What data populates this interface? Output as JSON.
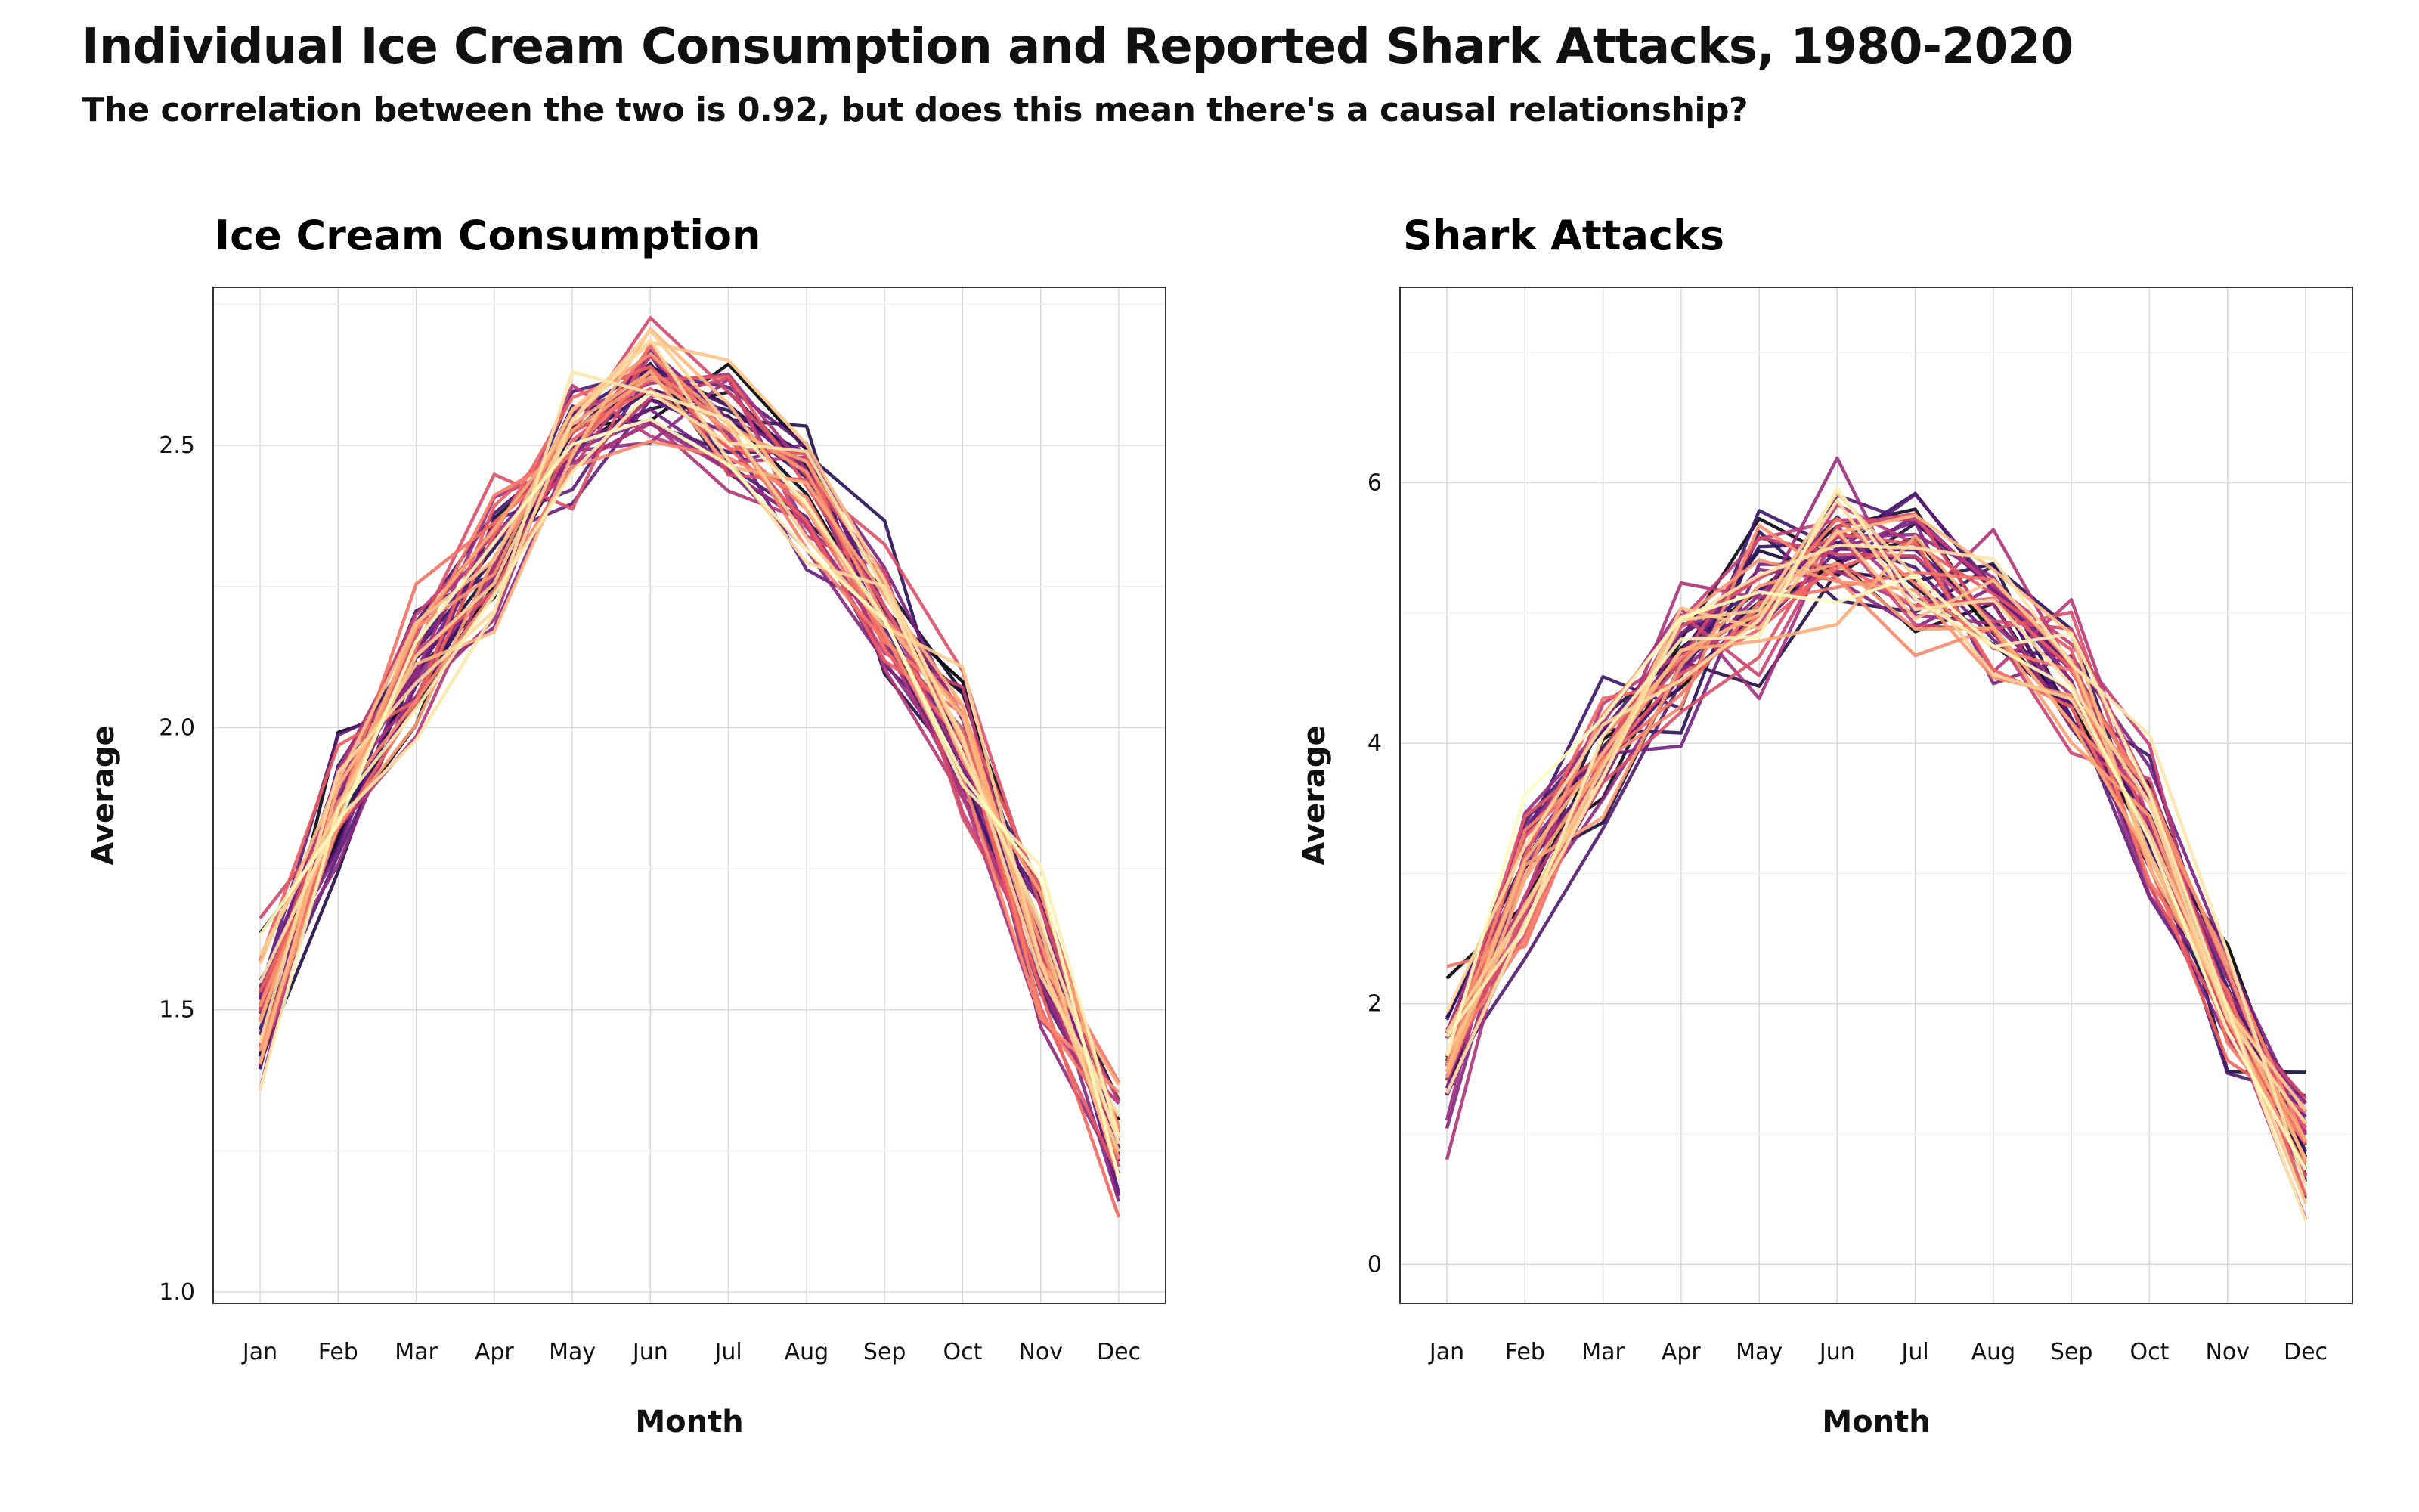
{
  "title": "Individual Ice Cream Consumption and Reported Shark Attacks, 1980-2020",
  "subtitle": "The correlation between the two is 0.92, but does this mean there's a causal relationship?",
  "colors": {
    "palette": [
      "#000004",
      "#2c115f",
      "#721f81",
      "#b73779",
      "#f1605d",
      "#feb078",
      "#fcfdbf"
    ],
    "grid": "#d9d9d9",
    "axis": "#333333"
  },
  "chart_data": [
    {
      "type": "line",
      "title": "Ice Cream Consumption",
      "xlabel": "Month",
      "ylabel": "Average",
      "categories": [
        "Jan",
        "Feb",
        "Mar",
        "Apr",
        "May",
        "Jun",
        "Jul",
        "Aug",
        "Sep",
        "Oct",
        "Nov",
        "Dec"
      ],
      "ylim": [
        0.98,
        2.78
      ],
      "yticks": [
        1.0,
        1.5,
        2.0,
        2.5
      ],
      "ytick_labels": [
        "1.0",
        "1.5",
        "2.0",
        "2.5"
      ],
      "grid": true,
      "legend": "none",
      "series_count": 41,
      "years": [
        1980,
        2020
      ],
      "baseline": [
        1.5,
        1.85,
        2.12,
        2.3,
        2.5,
        2.6,
        2.55,
        2.42,
        2.22,
        1.95,
        1.62,
        1.25
      ],
      "spread": [
        0.12,
        0.12,
        0.12,
        0.12,
        0.1,
        0.1,
        0.1,
        0.1,
        0.1,
        0.12,
        0.12,
        0.1
      ]
    },
    {
      "type": "line",
      "title": "Shark Attacks",
      "xlabel": "Month",
      "ylabel": "Average",
      "categories": [
        "Jan",
        "Feb",
        "Mar",
        "Apr",
        "May",
        "Jun",
        "Jul",
        "Aug",
        "Sep",
        "Oct",
        "Nov",
        "Dec"
      ],
      "ylim": [
        -0.3,
        7.5
      ],
      "yticks": [
        0,
        2,
        4,
        6
      ],
      "ytick_labels": [
        "0",
        "2",
        "4",
        "6"
      ],
      "grid": true,
      "legend": "none",
      "series_count": 41,
      "years": [
        1980,
        2020
      ],
      "baseline": [
        1.6,
        2.9,
        3.9,
        4.6,
        5.1,
        5.5,
        5.3,
        5.0,
        4.5,
        3.4,
        2.0,
        0.9
      ],
      "spread": [
        0.5,
        0.5,
        0.5,
        0.5,
        0.5,
        0.5,
        0.6,
        0.5,
        0.5,
        0.6,
        0.5,
        0.5
      ]
    }
  ]
}
